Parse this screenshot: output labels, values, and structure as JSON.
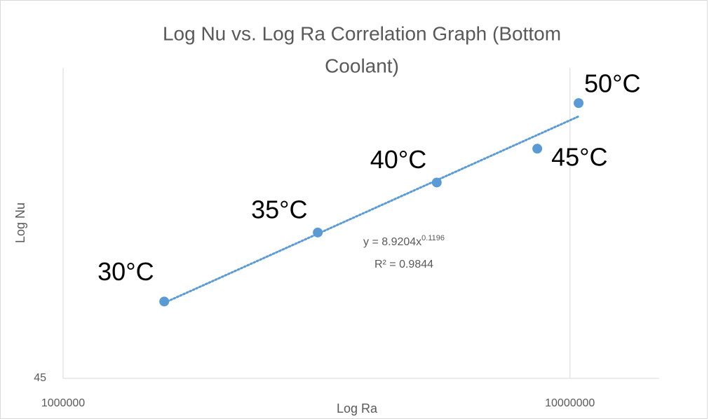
{
  "chart_data": {
    "type": "scatter",
    "title": [
      "Log Nu vs. Log Ra Correlation Graph (Bottom",
      "Coolant)"
    ],
    "x_label": "Log Ra",
    "y_label": "Log Nu",
    "x_log": true,
    "y_log": true,
    "xlim": [
      1000000,
      15000000
    ],
    "ylim": [
      45,
      64
    ],
    "xticks": [
      1000000,
      10000000
    ],
    "yticks": [
      45
    ],
    "grid": "vertical",
    "series": [
      {
        "name": "Log Nu",
        "color": "#5b9bd5",
        "x": [
          1583000,
          3180000,
          5460000,
          8620000,
          10400000
        ],
        "values": [
          49.1,
          53.1,
          56.2,
          58.4,
          61.5
        ],
        "point_labels": [
          "30°C",
          "35°C",
          "40°C",
          "45°C",
          "50°C"
        ]
      }
    ],
    "trendline": {
      "type": "power",
      "equation": "y = 8.9204x",
      "exponent": "0.1196",
      "r_squared": "R² = 0.9844"
    }
  }
}
